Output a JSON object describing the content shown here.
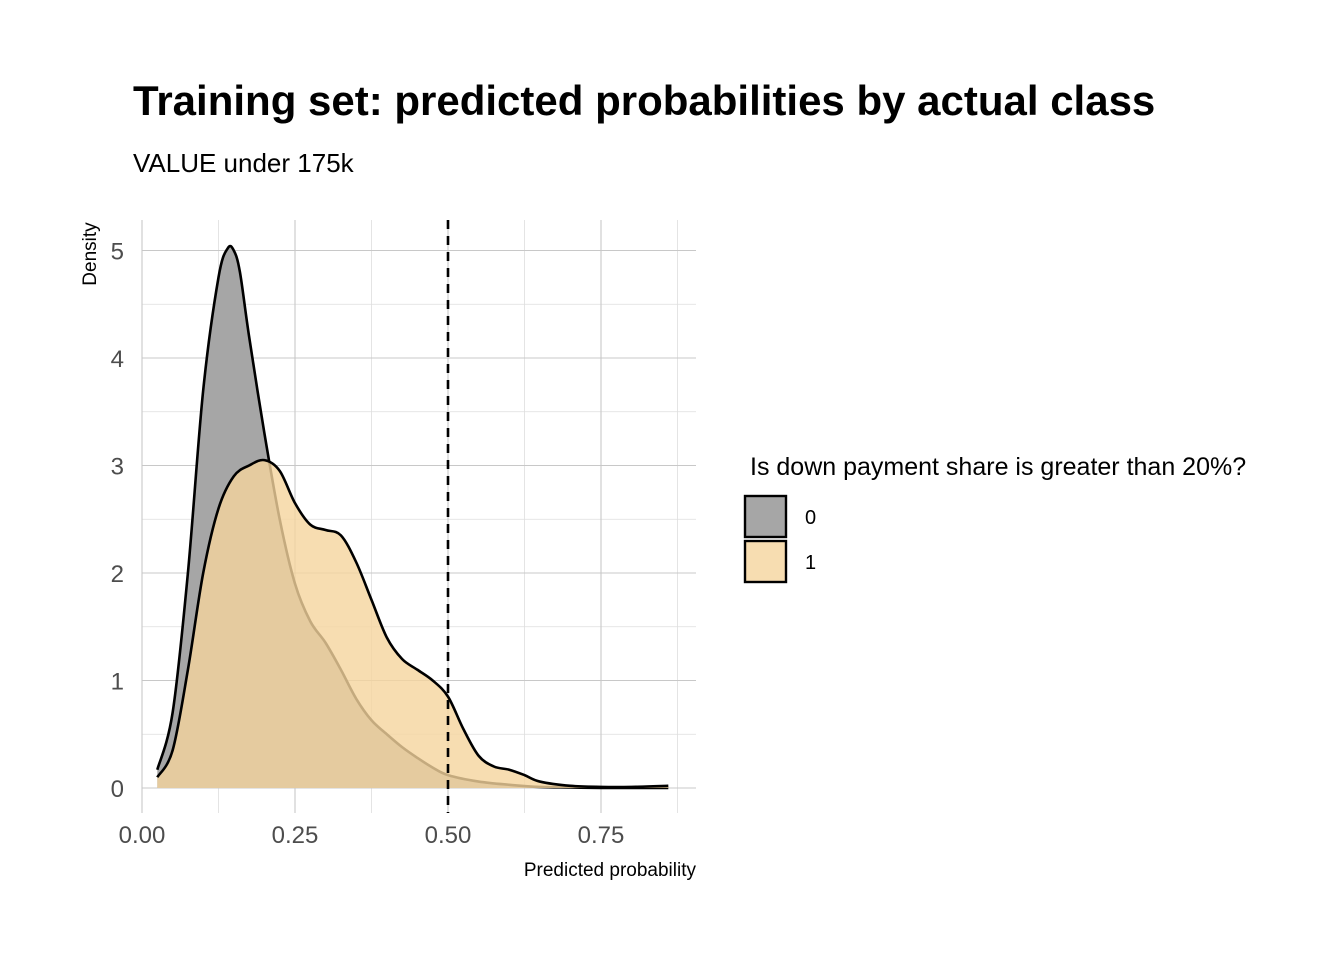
{
  "chart_data": {
    "type": "area",
    "title": "Training set: predicted probabilities by actual class",
    "subtitle": "VALUE under 175k",
    "xlabel": "Predicted probability",
    "ylabel": "Density",
    "xlim": [
      0.0,
      0.9
    ],
    "ylim": [
      0,
      5.3
    ],
    "x_ticks": [
      0.0,
      0.25,
      0.5,
      0.75
    ],
    "x_tick_labels": [
      "0.00",
      "0.25",
      "0.50",
      "0.75"
    ],
    "y_ticks": [
      0,
      1,
      2,
      3,
      4,
      5
    ],
    "y_tick_labels": [
      "0",
      "1",
      "2",
      "3",
      "4",
      "5"
    ],
    "threshold": 0.5,
    "grid": true,
    "legend": {
      "title": "Is down payment share is greater than 20%?",
      "placement": "right"
    },
    "series": [
      {
        "name": "0",
        "color": "#a6a6a6",
        "opacity": 1.0,
        "x": [
          0.025,
          0.05,
          0.075,
          0.1,
          0.125,
          0.14,
          0.15,
          0.16,
          0.175,
          0.2,
          0.225,
          0.25,
          0.275,
          0.3,
          0.325,
          0.35,
          0.375,
          0.4,
          0.425,
          0.45,
          0.475,
          0.5,
          0.55,
          0.6,
          0.65,
          0.7,
          0.75,
          0.8,
          0.86
        ],
        "values": [
          0.17,
          0.7,
          2.0,
          3.7,
          4.75,
          5.02,
          5.0,
          4.8,
          4.2,
          3.3,
          2.5,
          1.9,
          1.55,
          1.35,
          1.1,
          0.83,
          0.63,
          0.5,
          0.38,
          0.28,
          0.19,
          0.12,
          0.06,
          0.03,
          0.01,
          0.005,
          0.0,
          0.0,
          0.0
        ]
      },
      {
        "name": "1",
        "color": "#f5d49e",
        "opacity": 0.8,
        "x": [
          0.025,
          0.05,
          0.075,
          0.1,
          0.125,
          0.15,
          0.175,
          0.2,
          0.225,
          0.25,
          0.275,
          0.3,
          0.325,
          0.35,
          0.375,
          0.4,
          0.425,
          0.45,
          0.475,
          0.5,
          0.525,
          0.55,
          0.575,
          0.6,
          0.625,
          0.65,
          0.7,
          0.75,
          0.8,
          0.86
        ],
        "values": [
          0.1,
          0.35,
          1.1,
          2.0,
          2.6,
          2.9,
          3.0,
          3.05,
          2.95,
          2.65,
          2.45,
          2.4,
          2.35,
          2.1,
          1.75,
          1.4,
          1.2,
          1.1,
          1.0,
          0.85,
          0.55,
          0.3,
          0.2,
          0.17,
          0.12,
          0.06,
          0.02,
          0.01,
          0.01,
          0.02
        ]
      }
    ]
  }
}
